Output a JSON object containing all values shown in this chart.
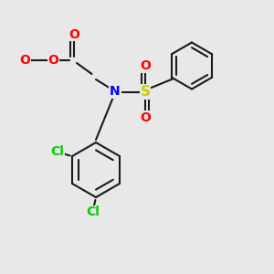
{
  "bg_color": "#e8e8e8",
  "bond_color": "#1a1a1a",
  "bond_width": 1.5,
  "atom_colors": {
    "C": "#1a1a1a",
    "H": "#1a1a1a",
    "O": "#ff0000",
    "N": "#0000ff",
    "S": "#cccc00",
    "Cl": "#00cc00"
  },
  "font_size": 9
}
